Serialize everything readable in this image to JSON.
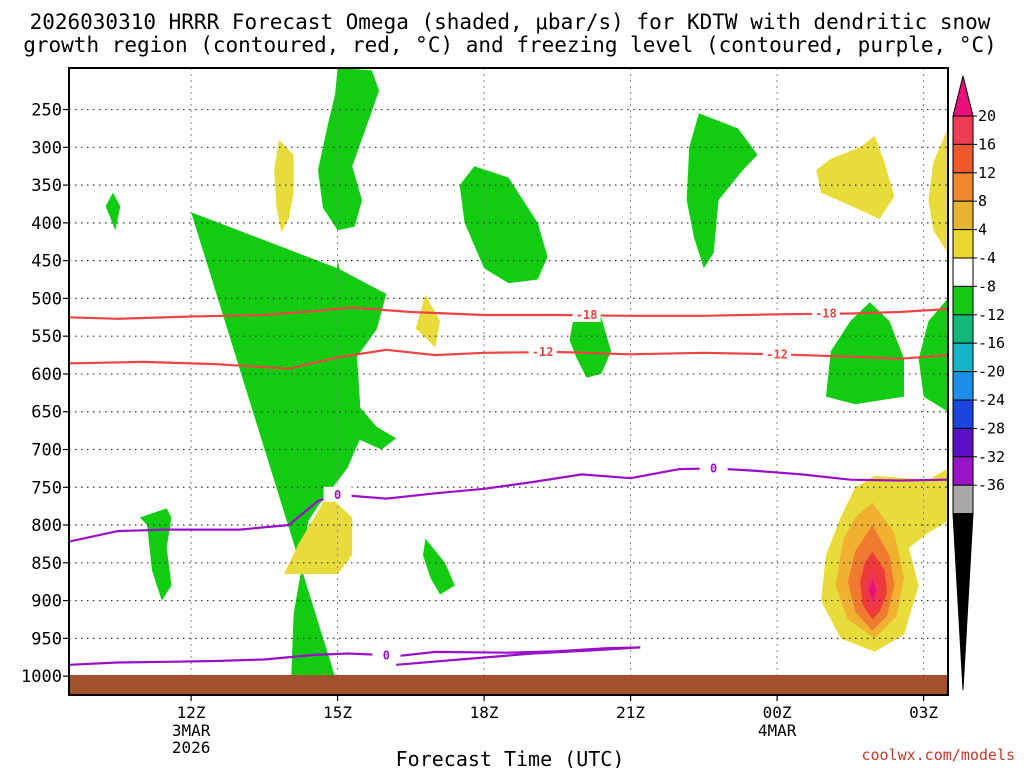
{
  "chart_data": {
    "type": "heatmap",
    "title_lines": [
      "2026030310 HRRR Forecast Omega (shaded, μbar/s) for KDTW with dendritic snow",
      "growth region (contoured, red, °C) and freezing level (contoured, purple, °C)"
    ],
    "xlabel": "Forecast Time (UTC)",
    "credit": "coolwx.com/models",
    "x_range_hours": [
      9.5,
      27.5
    ],
    "x_ticks": [
      {
        "hour": 12,
        "label": "12Z",
        "sub": [
          "3MAR",
          "2026"
        ]
      },
      {
        "hour": 15,
        "label": "15Z",
        "sub": []
      },
      {
        "hour": 18,
        "label": "18Z",
        "sub": []
      },
      {
        "hour": 21,
        "label": "21Z",
        "sub": []
      },
      {
        "hour": 24,
        "label": "00Z",
        "sub": [
          "4MAR"
        ]
      },
      {
        "hour": 27,
        "label": "03Z",
        "sub": []
      }
    ],
    "y_range_mb": [
      1025,
      195
    ],
    "y_ticks": [
      250,
      300,
      350,
      400,
      450,
      500,
      550,
      600,
      650,
      700,
      750,
      800,
      850,
      900,
      950,
      1000
    ],
    "colorbar": {
      "labels": [
        "20",
        "16",
        "12",
        "8",
        "4",
        "-4",
        "-8",
        "-12",
        "-16",
        "-20",
        "-24",
        "-28",
        "-32",
        "-36"
      ],
      "colors": [
        "#ef3b54",
        "#f05a2a",
        "#f0882b",
        "#e8b430",
        "#e8d830",
        "#ffffff",
        "#12c812",
        "#12b87a",
        "#14b4c8",
        "#1a8ee8",
        "#1a46e0",
        "#5a10c8",
        "#9a14c8",
        "#a8a8a8"
      ],
      "top_arrow_color": "#e8107a",
      "bottom_arrow_color": "#000000"
    },
    "colors": {
      "green": "#12cc12",
      "yellow": "#e8dc3a",
      "orange": "#f0b030",
      "dark_orange": "#f07a30",
      "red": "#ee3a3a",
      "magenta": "#e8107a",
      "ground": "#a0522d",
      "dsgz": "#ee4444",
      "freezing": "#9a10c8"
    },
    "omega_regions": [
      {
        "level": "-8",
        "points": [
          [
            12,
            386
          ],
          [
            15,
            460
          ],
          [
            16,
            494
          ],
          [
            15.8,
            541
          ],
          [
            15.4,
            577
          ],
          [
            15.5,
            680
          ],
          [
            15.2,
            725
          ],
          [
            14.6,
            775
          ],
          [
            14.4,
            795
          ],
          [
            14.3,
            845
          ],
          [
            14.2,
            880
          ],
          [
            14.1,
            918
          ],
          [
            14.05,
            1002
          ],
          [
            14.3,
            1015
          ],
          [
            14.95,
            1001
          ]
        ],
        "comment": "placeholder"
      },
      {
        "level": "-8",
        "points": [
          [
            10.4,
            360
          ],
          [
            10.55,
            378
          ],
          [
            10.45,
            410
          ],
          [
            10.25,
            378
          ]
        ]
      },
      {
        "level": "-8",
        "points": [
          [
            15,
            195
          ],
          [
            15.7,
            198
          ],
          [
            15.85,
            225
          ],
          [
            15.65,
            262
          ],
          [
            15.3,
            325
          ],
          [
            15.5,
            370
          ],
          [
            15.35,
            405
          ],
          [
            15,
            410
          ],
          [
            14.7,
            380
          ],
          [
            14.6,
            330
          ],
          [
            14.8,
            270
          ],
          [
            14.95,
            230
          ]
        ]
      },
      {
        "level": "-8",
        "points": [
          [
            15,
            450
          ],
          [
            15.1,
            475
          ],
          [
            15.05,
            510
          ],
          [
            14.95,
            485
          ]
        ]
      },
      {
        "level": "-8",
        "points": [
          [
            14.7,
            605
          ],
          [
            15.2,
            625
          ],
          [
            15.8,
            670
          ],
          [
            16.2,
            685
          ],
          [
            15.9,
            700
          ],
          [
            15.2,
            680
          ],
          [
            14.8,
            660
          ],
          [
            14.7,
            635
          ]
        ]
      },
      {
        "level": "-8",
        "points": [
          [
            17.8,
            325
          ],
          [
            18.5,
            340
          ],
          [
            19.1,
            400
          ],
          [
            19.3,
            445
          ],
          [
            19.1,
            475
          ],
          [
            18.5,
            480
          ],
          [
            18.0,
            460
          ],
          [
            17.6,
            400
          ],
          [
            17.5,
            350
          ]
        ]
      },
      {
        "level": "-8",
        "points": [
          [
            19.9,
            515
          ],
          [
            20.4,
            525
          ],
          [
            20.6,
            570
          ],
          [
            20.4,
            600
          ],
          [
            20.1,
            605
          ],
          [
            19.9,
            580
          ],
          [
            19.75,
            555
          ],
          [
            19.85,
            520
          ]
        ]
      },
      {
        "level": "-8",
        "points": [
          [
            22.4,
            255
          ],
          [
            23.2,
            275
          ],
          [
            23.6,
            310
          ],
          [
            23.3,
            330
          ],
          [
            22.8,
            370
          ],
          [
            22.7,
            440
          ],
          [
            22.5,
            460
          ],
          [
            22.3,
            420
          ],
          [
            22.15,
            370
          ],
          [
            22.2,
            300
          ]
        ]
      },
      {
        "level": "-8",
        "points": [
          [
            11.5,
            778
          ],
          [
            11.6,
            790
          ],
          [
            11.5,
            830
          ],
          [
            11.6,
            880
          ],
          [
            11.4,
            900
          ],
          [
            11.2,
            860
          ],
          [
            11.1,
            800
          ],
          [
            10.95,
            790
          ]
        ]
      },
      {
        "level": "-8",
        "points": [
          [
            16.8,
            818
          ],
          [
            17.2,
            850
          ],
          [
            17.4,
            880
          ],
          [
            17.1,
            892
          ],
          [
            16.9,
            870
          ],
          [
            16.75,
            840
          ]
        ]
      },
      {
        "level": "-8",
        "points": [
          [
            25.9,
            505
          ],
          [
            26.3,
            530
          ],
          [
            26.6,
            580
          ],
          [
            26.6,
            630
          ],
          [
            25.6,
            640
          ],
          [
            25.0,
            630
          ],
          [
            25.1,
            570
          ],
          [
            25.5,
            530
          ]
        ]
      },
      {
        "level": "-8",
        "points": [
          [
            27.5,
            500
          ],
          [
            27.1,
            530
          ],
          [
            26.9,
            580
          ],
          [
            27.0,
            630
          ],
          [
            27.5,
            650
          ]
        ]
      },
      {
        "level": "4",
        "points": [
          [
            13.8,
            290
          ],
          [
            14.1,
            310
          ],
          [
            14.1,
            360
          ],
          [
            14.0,
            395
          ],
          [
            13.85,
            412
          ],
          [
            13.75,
            380
          ],
          [
            13.7,
            330
          ]
        ]
      },
      {
        "level": "4",
        "points": [
          [
            16.8,
            495
          ],
          [
            17.1,
            530
          ],
          [
            17.0,
            565
          ],
          [
            16.85,
            555
          ],
          [
            16.6,
            540
          ]
        ]
      },
      {
        "level": "4",
        "points": [
          [
            26.0,
            285
          ],
          [
            26.2,
            320
          ],
          [
            26.4,
            365
          ],
          [
            26.1,
            395
          ],
          [
            25.6,
            380
          ],
          [
            24.9,
            360
          ],
          [
            24.8,
            330
          ],
          [
            25.1,
            315
          ],
          [
            25.7,
            300
          ]
        ]
      },
      {
        "level": "4",
        "points": [
          [
            27.5,
            275
          ],
          [
            27.2,
            320
          ],
          [
            27.1,
            370
          ],
          [
            27.2,
            410
          ],
          [
            27.5,
            440
          ]
        ]
      },
      {
        "level": "4",
        "points": [
          [
            14.8,
            760
          ],
          [
            15.3,
            790
          ],
          [
            15.3,
            840
          ],
          [
            15.0,
            865
          ],
          [
            13.9,
            865
          ],
          [
            14.2,
            825
          ]
        ]
      },
      {
        "level": "4",
        "points": [
          [
            26.0,
            735
          ],
          [
            27.1,
            740
          ],
          [
            27.5,
            725
          ],
          [
            27.5,
            795
          ],
          [
            27.1,
            810
          ],
          [
            26.7,
            830
          ],
          [
            26.9,
            880
          ],
          [
            26.6,
            945
          ],
          [
            26.0,
            968
          ],
          [
            25.3,
            950
          ],
          [
            24.9,
            900
          ],
          [
            25.0,
            840
          ],
          [
            25.3,
            790
          ],
          [
            25.6,
            750
          ]
        ]
      },
      {
        "level": "8",
        "points": [
          [
            25.95,
            770
          ],
          [
            26.4,
            810
          ],
          [
            26.6,
            870
          ],
          [
            26.45,
            920
          ],
          [
            26.0,
            950
          ],
          [
            25.45,
            925
          ],
          [
            25.2,
            880
          ],
          [
            25.35,
            820
          ],
          [
            25.6,
            790
          ]
        ]
      },
      {
        "level": "12",
        "points": [
          [
            25.95,
            800
          ],
          [
            26.3,
            840
          ],
          [
            26.4,
            880
          ],
          [
            26.25,
            920
          ],
          [
            25.95,
            940
          ],
          [
            25.6,
            915
          ],
          [
            25.45,
            875
          ],
          [
            25.6,
            835
          ]
        ]
      },
      {
        "level": "16",
        "points": [
          [
            25.95,
            835
          ],
          [
            26.2,
            860
          ],
          [
            26.25,
            890
          ],
          [
            26.1,
            915
          ],
          [
            25.95,
            925
          ],
          [
            25.75,
            905
          ],
          [
            25.7,
            875
          ],
          [
            25.8,
            850
          ]
        ]
      },
      {
        "level": "20",
        "points": [
          [
            25.95,
            855
          ],
          [
            26.08,
            875
          ],
          [
            26.1,
            895
          ],
          [
            25.98,
            912
          ],
          [
            25.85,
            895
          ],
          [
            25.82,
            875
          ]
        ]
      },
      {
        "level": "24",
        "points": [
          [
            25.95,
            872
          ],
          [
            26.03,
            885
          ],
          [
            25.96,
            900
          ],
          [
            25.88,
            886
          ]
        ]
      }
    ],
    "dsgz_contours": [
      {
        "label": "-18",
        "points": [
          [
            9.5,
            525
          ],
          [
            10.5,
            527
          ],
          [
            12,
            524
          ],
          [
            13.5,
            522
          ],
          [
            14.5,
            517
          ],
          [
            15.3,
            512
          ],
          [
            16.5,
            518
          ],
          [
            18,
            522
          ],
          [
            19.5,
            522
          ],
          [
            21,
            523
          ],
          [
            22.5,
            523
          ],
          [
            24,
            521
          ],
          [
            25.5,
            520
          ],
          [
            26.5,
            518
          ],
          [
            27.5,
            514
          ]
        ],
        "label_at": [
          [
            20.1,
            522
          ],
          [
            25,
            520
          ]
        ]
      },
      {
        "label": "-12",
        "points": [
          [
            9.5,
            586
          ],
          [
            11,
            584
          ],
          [
            12.5,
            587
          ],
          [
            14,
            593
          ],
          [
            15,
            578
          ],
          [
            16,
            568
          ],
          [
            17,
            575
          ],
          [
            18,
            572
          ],
          [
            19.5,
            571
          ],
          [
            21,
            574
          ],
          [
            22.5,
            572
          ],
          [
            24,
            574
          ],
          [
            25.5,
            577
          ],
          [
            26.5,
            580
          ],
          [
            27.5,
            575
          ]
        ],
        "label_at": [
          [
            19.2,
            571
          ],
          [
            24,
            574
          ]
        ]
      }
    ],
    "freezing_contours": [
      {
        "label": "0",
        "points": [
          [
            9.5,
            822
          ],
          [
            10.5,
            808
          ],
          [
            11.5,
            806
          ],
          [
            13,
            806
          ],
          [
            14,
            800
          ],
          [
            14.6,
            768
          ],
          [
            15,
            760
          ],
          [
            16,
            765
          ],
          [
            17,
            758
          ],
          [
            18,
            752
          ],
          [
            19,
            743
          ],
          [
            20,
            733
          ],
          [
            21,
            738
          ],
          [
            22,
            726
          ],
          [
            22.7,
            725
          ],
          [
            23.5,
            728
          ],
          [
            24.5,
            733
          ],
          [
            25.5,
            740
          ],
          [
            26.5,
            741
          ],
          [
            27.5,
            740
          ]
        ],
        "label_at": [
          [
            15,
            760
          ],
          [
            22.7,
            725
          ]
        ]
      },
      {
        "label": "0",
        "points": [
          [
            9.5,
            985
          ],
          [
            10.5,
            982
          ],
          [
            11.5,
            981
          ],
          [
            12.5,
            980
          ],
          [
            13.5,
            978
          ],
          [
            14.5,
            972
          ],
          [
            15.2,
            970
          ],
          [
            16.3,
            973
          ],
          [
            17,
            968
          ],
          [
            18.5,
            969
          ],
          [
            19.5,
            967
          ],
          [
            20.5,
            963
          ],
          [
            21.2,
            962
          ],
          [
            20.2,
            966
          ],
          [
            19,
            970
          ],
          [
            17.5,
            978
          ],
          [
            16.2,
            985
          ]
        ],
        "label_at": [
          [
            16,
            973
          ]
        ]
      }
    ]
  }
}
